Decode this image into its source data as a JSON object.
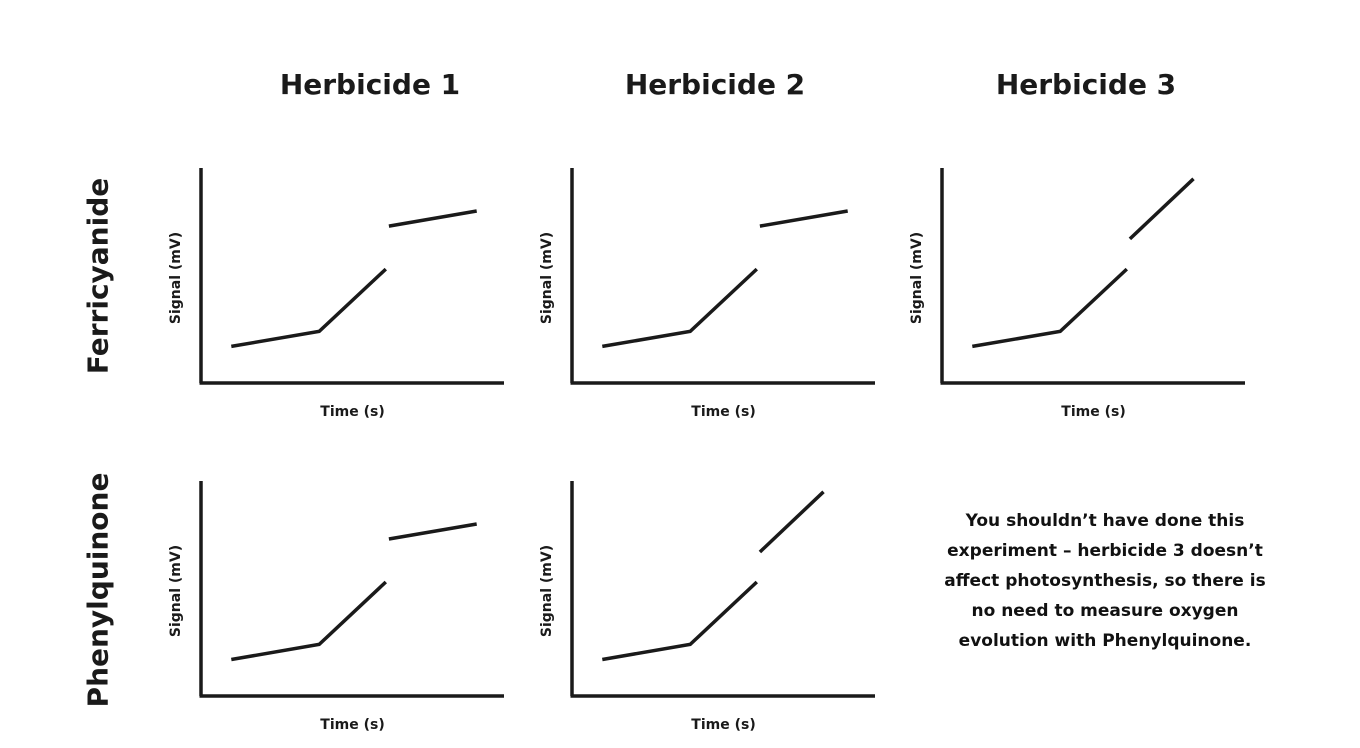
{
  "column_headers": [
    "Herbicide 1",
    "Herbicide 2",
    "Herbicide 3"
  ],
  "row_headers": [
    "Ferricyanide",
    "Phenylquinone"
  ],
  "note": "You shouldn’t have done this experiment – herbicide 3 doesn’t affect photosynthesis, so there is no need to measure oxygen evolution with Phenylquinone.",
  "chart_data": [
    {
      "type": "line",
      "panel": "Ferricyanide / Herbicide 1",
      "xlabel": "Time (s)",
      "ylabel": "Signal (mV)",
      "xlim": [
        0,
        10
      ],
      "ylim": [
        0,
        10
      ],
      "grid": false,
      "segments": [
        {
          "x": [
            1.0,
            3.9,
            6.1
          ],
          "y": [
            1.7,
            2.4,
            5.3
          ]
        },
        {
          "x": [
            6.2,
            9.1
          ],
          "y": [
            7.3,
            8.0
          ]
        }
      ]
    },
    {
      "type": "line",
      "panel": "Ferricyanide / Herbicide 2",
      "xlabel": "Time (s)",
      "ylabel": "Signal (mV)",
      "xlim": [
        0,
        10
      ],
      "ylim": [
        0,
        10
      ],
      "grid": false,
      "segments": [
        {
          "x": [
            1.0,
            3.9,
            6.1
          ],
          "y": [
            1.7,
            2.4,
            5.3
          ]
        },
        {
          "x": [
            6.2,
            9.1
          ],
          "y": [
            7.3,
            8.0
          ]
        }
      ]
    },
    {
      "type": "line",
      "panel": "Ferricyanide / Herbicide 3",
      "xlabel": "Time (s)",
      "ylabel": "Signal (mV)",
      "xlim": [
        0,
        10
      ],
      "ylim": [
        0,
        10
      ],
      "grid": false,
      "segments": [
        {
          "x": [
            1.0,
            3.9,
            6.1
          ],
          "y": [
            1.7,
            2.4,
            5.3
          ]
        },
        {
          "x": [
            6.2,
            8.3
          ],
          "y": [
            6.7,
            9.5
          ]
        }
      ]
    },
    {
      "type": "line",
      "panel": "Phenylquinone / Herbicide 1",
      "xlabel": "Time (s)",
      "ylabel": "Signal (mV)",
      "xlim": [
        0,
        10
      ],
      "ylim": [
        0,
        10
      ],
      "grid": false,
      "segments": [
        {
          "x": [
            1.0,
            3.9,
            6.1
          ],
          "y": [
            1.7,
            2.4,
            5.3
          ]
        },
        {
          "x": [
            6.2,
            9.1
          ],
          "y": [
            7.3,
            8.0
          ]
        }
      ]
    },
    {
      "type": "line",
      "panel": "Phenylquinone / Herbicide 2",
      "xlabel": "Time (s)",
      "ylabel": "Signal (mV)",
      "xlim": [
        0,
        10
      ],
      "ylim": [
        0,
        10
      ],
      "grid": false,
      "segments": [
        {
          "x": [
            1.0,
            3.9,
            6.1
          ],
          "y": [
            1.7,
            2.4,
            5.3
          ]
        },
        {
          "x": [
            6.2,
            8.3
          ],
          "y": [
            6.7,
            9.5
          ]
        }
      ]
    }
  ]
}
